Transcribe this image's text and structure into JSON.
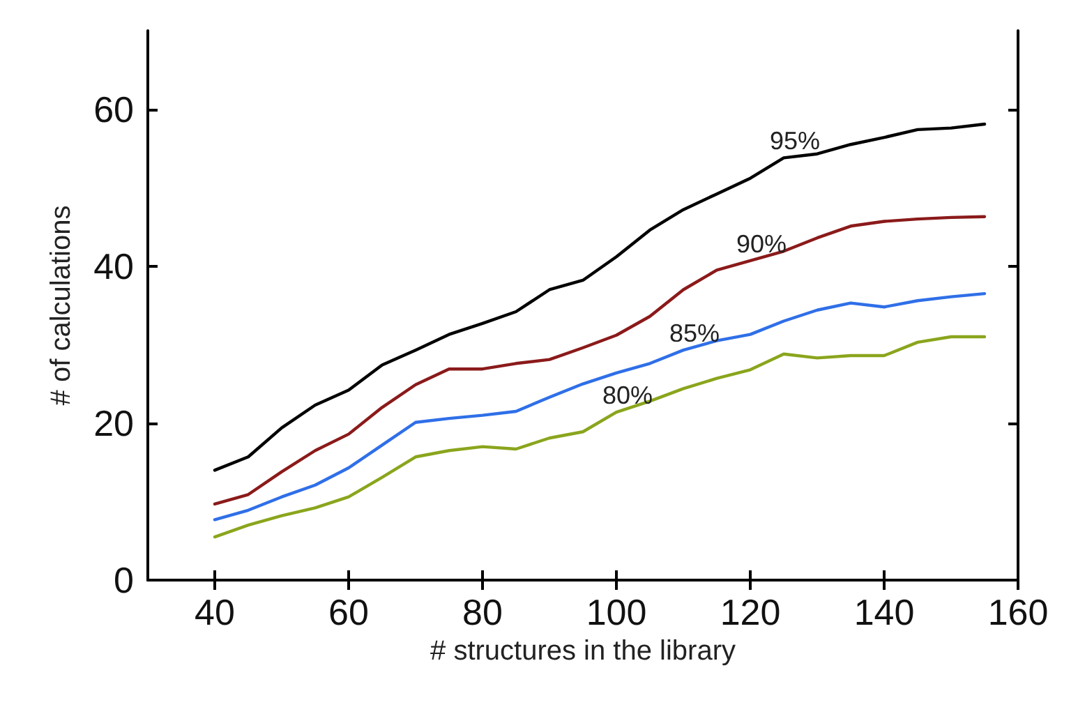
{
  "chart_data": {
    "type": "line",
    "xlabel": "# structures in the library",
    "ylabel": "# of calculations",
    "x": [
      40,
      45,
      50,
      55,
      60,
      65,
      70,
      75,
      80,
      85,
      90,
      95,
      100,
      105,
      110,
      115,
      120,
      125,
      130,
      135,
      140,
      145,
      150,
      155
    ],
    "series": [
      {
        "color": "#000000",
        "values": [
          14.0,
          15.7,
          19.4,
          22.3,
          24.2,
          27.4,
          29.3,
          31.3,
          32.7,
          34.2,
          37.0,
          38.2,
          41.2,
          44.6,
          47.2,
          49.2,
          51.2,
          53.8,
          54.3,
          55.5,
          56.4,
          57.4,
          57.6,
          58.1
        ]
      },
      {
        "color": "#8b1a1a",
        "values": [
          9.7,
          10.9,
          13.8,
          16.5,
          18.6,
          22.0,
          24.9,
          26.9,
          26.9,
          27.6,
          28.1,
          29.6,
          31.2,
          33.6,
          37.0,
          39.5,
          40.7,
          41.9,
          43.6,
          45.1,
          45.7,
          46.0,
          46.2,
          46.3
        ]
      },
      {
        "color": "#2f6fe8",
        "values": [
          7.7,
          8.9,
          10.6,
          12.1,
          14.3,
          17.2,
          20.1,
          20.6,
          21.0,
          21.5,
          23.3,
          25.0,
          26.4,
          27.6,
          29.3,
          30.5,
          31.3,
          33.0,
          34.4,
          35.3,
          34.8,
          35.6,
          36.1,
          36.5
        ]
      },
      {
        "color": "#8aa51c",
        "values": [
          5.5,
          7.0,
          8.2,
          9.2,
          10.6,
          13.1,
          15.7,
          16.5,
          17.0,
          16.7,
          18.1,
          18.9,
          21.4,
          22.8,
          24.4,
          25.7,
          26.8,
          28.8,
          28.3,
          28.6,
          28.6,
          30.3,
          31.0,
          31.0
        ]
      }
    ],
    "annotations": [
      {
        "text": "95%",
        "x": 125,
        "y": 53.8
      },
      {
        "text": "90%",
        "x": 120,
        "y": 40.7
      },
      {
        "text": "85%",
        "x": 110,
        "y": 29.3
      },
      {
        "text": "80%",
        "x": 100,
        "y": 21.4
      }
    ],
    "xlim": [
      30,
      160
    ],
    "ylim": [
      0,
      70
    ],
    "xticks": [
      40,
      60,
      80,
      100,
      120,
      140,
      160
    ],
    "yticks": [
      0,
      20,
      40,
      60
    ],
    "grid": false,
    "marker": "none",
    "line_style": "solid"
  }
}
